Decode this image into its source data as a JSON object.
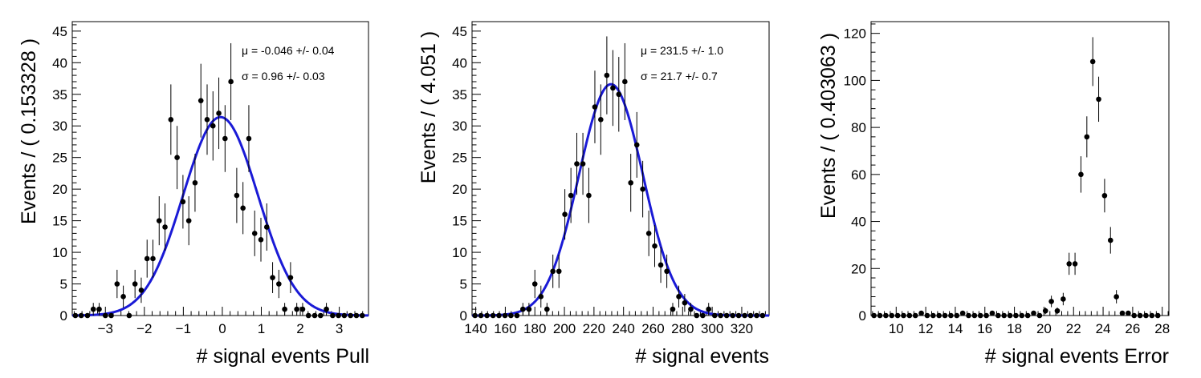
{
  "chart_data": [
    {
      "type": "scatter",
      "id": "pull",
      "xlabel": "# signal events Pull",
      "ylabel": "Events / ( 0.153328 )",
      "xlim": [
        -3.85,
        3.75
      ],
      "ylim": [
        0,
        46.5
      ],
      "xticks": [
        -3,
        -2,
        -1,
        0,
        1,
        2,
        3
      ],
      "xtick_labels": [
        "−3",
        "−2",
        "−1",
        "0",
        "1",
        "2",
        "3"
      ],
      "yticks": [
        0,
        5,
        10,
        15,
        20,
        25,
        30,
        35,
        40,
        45
      ],
      "ytick_labels": [
        "0",
        "5",
        "10",
        "15",
        "20",
        "25",
        "30",
        "35",
        "40",
        "45"
      ],
      "grid": false,
      "points": {
        "x": [
          -3.77,
          -3.62,
          -3.46,
          -3.31,
          -3.16,
          -3.0,
          -2.85,
          -2.7,
          -2.54,
          -2.39,
          -2.24,
          -2.08,
          -1.93,
          -1.78,
          -1.62,
          -1.47,
          -1.32,
          -1.16,
          -1.01,
          -0.86,
          -0.7,
          -0.55,
          -0.39,
          -0.24,
          -0.09,
          0.07,
          0.22,
          0.37,
          0.53,
          0.68,
          0.83,
          0.99,
          1.14,
          1.29,
          1.45,
          1.6,
          1.75,
          1.91,
          2.06,
          2.21,
          2.37,
          2.52,
          2.67,
          2.83,
          2.98,
          3.13,
          3.29,
          3.44,
          3.59
        ],
        "y": [
          0,
          0,
          0,
          1,
          1,
          0,
          0,
          5,
          3,
          0,
          5,
          4,
          9,
          9,
          15,
          14,
          31,
          25,
          18,
          15,
          21,
          34,
          31,
          30,
          32,
          28,
          37,
          19,
          17,
          28,
          13,
          12,
          14,
          6,
          5,
          1,
          6,
          1,
          1,
          0,
          0,
          0,
          1,
          0,
          0,
          0,
          0,
          0,
          0
        ]
      },
      "fit": {
        "mu": -0.046,
        "sigma": 0.96,
        "amp": 31.4
      },
      "annotations": [
        "μ = -0.046 +/- 0.04",
        "σ =  0.96 +/- 0.03"
      ]
    },
    {
      "type": "scatter",
      "id": "signal",
      "xlabel": "# signal events",
      "ylabel": "Events / ( 4.051 )",
      "xlim": [
        137.5,
        338.5
      ],
      "ylim": [
        0,
        46.5
      ],
      "xticks": [
        140,
        160,
        180,
        200,
        220,
        240,
        260,
        280,
        300,
        320
      ],
      "xtick_labels": [
        "140",
        "160",
        "180",
        "200",
        "220",
        "240",
        "260",
        "280",
        "300",
        "320"
      ],
      "yticks": [
        0,
        5,
        10,
        15,
        20,
        25,
        30,
        35,
        40,
        45
      ],
      "ytick_labels": [
        "0",
        "5",
        "10",
        "15",
        "20",
        "25",
        "30",
        "35",
        "40",
        "45"
      ],
      "grid": false,
      "points": {
        "x": [
          139.5,
          143.5,
          147.6,
          151.7,
          155.7,
          159.8,
          163.8,
          167.9,
          171.9,
          176.0,
          180.0,
          184.1,
          188.2,
          192.2,
          196.3,
          200.3,
          204.4,
          208.4,
          212.5,
          216.5,
          220.6,
          224.6,
          228.7,
          232.8,
          236.8,
          240.9,
          244.9,
          249.0,
          253.0,
          257.1,
          261.1,
          265.2,
          269.3,
          273.3,
          277.4,
          281.4,
          285.5,
          289.5,
          293.6,
          297.6,
          301.7,
          305.7,
          309.8,
          313.9,
          317.9,
          322.0,
          326.0,
          330.1,
          334.1
        ],
        "y": [
          0,
          0,
          0,
          0,
          0,
          0,
          0,
          0,
          1,
          1,
          5,
          3,
          1,
          7,
          7,
          16,
          19,
          24,
          24,
          19,
          33,
          31,
          38,
          36,
          35,
          37,
          21,
          27,
          20,
          13,
          11,
          8,
          7,
          1,
          3,
          2,
          1,
          0,
          0,
          1,
          0,
          0,
          0,
          0,
          0,
          0,
          0,
          0,
          0
        ]
      },
      "fit": {
        "mu": 231.5,
        "sigma": 21.7,
        "amp": 36.6
      },
      "annotations": [
        "μ =  231.5 +/- 1.0",
        "σ =  21.7 +/- 0.7"
      ]
    },
    {
      "type": "scatter",
      "id": "error",
      "xlabel": "# signal events Error",
      "ylabel": "Events / ( 0.403063 )",
      "xlim": [
        8.3,
        28.45
      ],
      "ylim": [
        0,
        125
      ],
      "xticks": [
        10,
        12,
        14,
        16,
        18,
        20,
        22,
        24,
        26,
        28
      ],
      "xtick_labels": [
        "10",
        "12",
        "14",
        "16",
        "18",
        "20",
        "22",
        "24",
        "26",
        "28"
      ],
      "yticks": [
        0,
        20,
        40,
        60,
        80,
        100,
        120
      ],
      "ytick_labels": [
        "0",
        "20",
        "40",
        "60",
        "80",
        "100",
        "120"
      ],
      "grid": false,
      "points": {
        "x": [
          8.5,
          8.9,
          9.3,
          9.7,
          10.1,
          10.5,
          10.9,
          11.3,
          11.7,
          12.1,
          12.5,
          12.9,
          13.3,
          13.7,
          14.1,
          14.5,
          14.9,
          15.3,
          15.7,
          16.1,
          16.5,
          16.9,
          17.3,
          17.7,
          18.1,
          18.5,
          18.9,
          19.3,
          19.7,
          20.1,
          20.5,
          20.9,
          21.3,
          21.7,
          22.1,
          22.5,
          22.9,
          23.3,
          23.7,
          24.1,
          24.5,
          24.9,
          25.3,
          25.7,
          26.1,
          26.5,
          26.9,
          27.3,
          27.7
        ],
        "y": [
          0,
          0,
          0,
          0,
          0,
          0,
          0,
          0,
          1,
          0,
          0,
          0,
          0,
          0,
          0,
          1,
          0,
          0,
          0,
          0,
          1,
          0,
          0,
          0,
          0,
          0,
          0,
          1,
          0,
          2,
          6,
          2,
          7,
          22,
          22,
          60,
          76,
          108,
          92,
          51,
          32,
          8,
          1,
          1,
          0,
          0,
          0,
          0,
          0
        ]
      },
      "annotations": []
    }
  ]
}
